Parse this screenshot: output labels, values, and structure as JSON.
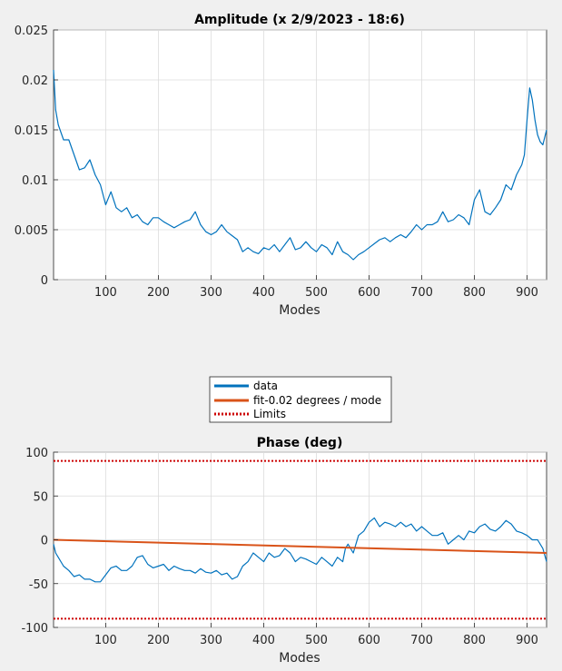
{
  "chart_data": [
    {
      "type": "line",
      "title": "Amplitude (x 2/9/2023 - 18:6)",
      "xlabel": "Modes",
      "ylabel": "",
      "xlim": [
        1,
        937
      ],
      "ylim": [
        0,
        0.025
      ],
      "xticks": [
        100,
        200,
        300,
        400,
        500,
        600,
        700,
        800,
        900
      ],
      "yticks": [
        0,
        0.005,
        0.01,
        0.015,
        0.02,
        0.025
      ],
      "ytick_labels": [
        "0",
        "0.005",
        "0.01",
        "0.015",
        "0.02",
        "0.025"
      ],
      "grid": true,
      "series": [
        {
          "name": "",
          "color": "#0072bd",
          "x": [
            1,
            5,
            10,
            20,
            30,
            40,
            50,
            60,
            70,
            80,
            90,
            100,
            110,
            120,
            130,
            140,
            150,
            160,
            170,
            180,
            190,
            200,
            210,
            220,
            230,
            240,
            250,
            260,
            270,
            280,
            290,
            300,
            310,
            320,
            330,
            340,
            350,
            360,
            370,
            380,
            390,
            400,
            410,
            420,
            430,
            440,
            450,
            460,
            470,
            480,
            490,
            500,
            510,
            520,
            530,
            540,
            550,
            560,
            570,
            580,
            590,
            600,
            610,
            620,
            630,
            640,
            650,
            660,
            670,
            680,
            690,
            700,
            710,
            720,
            730,
            740,
            750,
            760,
            770,
            780,
            790,
            800,
            810,
            820,
            830,
            840,
            850,
            860,
            870,
            880,
            885,
            890,
            895,
            900,
            905,
            910,
            915,
            920,
            925,
            930,
            937
          ],
          "y": [
            0.021,
            0.017,
            0.0155,
            0.014,
            0.014,
            0.0125,
            0.011,
            0.0112,
            0.012,
            0.0105,
            0.0095,
            0.0075,
            0.0088,
            0.0072,
            0.0068,
            0.0072,
            0.0062,
            0.0065,
            0.0058,
            0.0055,
            0.0062,
            0.0062,
            0.0058,
            0.0055,
            0.0052,
            0.0055,
            0.0058,
            0.006,
            0.0068,
            0.0055,
            0.0048,
            0.0045,
            0.0048,
            0.0055,
            0.0048,
            0.0044,
            0.004,
            0.0028,
            0.0032,
            0.0028,
            0.0026,
            0.0032,
            0.003,
            0.0035,
            0.0028,
            0.0035,
            0.0042,
            0.003,
            0.0032,
            0.0038,
            0.0032,
            0.0028,
            0.0035,
            0.0032,
            0.0025,
            0.0038,
            0.0028,
            0.0025,
            0.002,
            0.0025,
            0.0028,
            0.0032,
            0.0036,
            0.004,
            0.0042,
            0.0038,
            0.0042,
            0.0045,
            0.0042,
            0.0048,
            0.0055,
            0.005,
            0.0055,
            0.0055,
            0.0058,
            0.0068,
            0.0058,
            0.006,
            0.0065,
            0.0062,
            0.0055,
            0.008,
            0.009,
            0.0068,
            0.0065,
            0.0072,
            0.008,
            0.0095,
            0.009,
            0.0105,
            0.011,
            0.0115,
            0.0125,
            0.016,
            0.0192,
            0.018,
            0.016,
            0.0145,
            0.0138,
            0.0135,
            0.015
          ]
        }
      ]
    },
    {
      "type": "line",
      "title": "Phase (deg)",
      "xlabel": "Modes",
      "ylabel": "",
      "xlim": [
        1,
        937
      ],
      "ylim": [
        -100,
        100
      ],
      "xticks": [
        100,
        200,
        300,
        400,
        500,
        600,
        700,
        800,
        900
      ],
      "yticks": [
        -100,
        -50,
        0,
        50,
        100
      ],
      "ytick_labels": [
        "-100",
        "-50",
        "0",
        "50",
        "100"
      ],
      "grid": true,
      "legend": {
        "placement": "top-center",
        "entries": [
          {
            "label": "data",
            "color": "#0072bd",
            "style": "solid"
          },
          {
            "label": "fit-0.02 degrees / mode",
            "color": "#d95319",
            "style": "solid"
          },
          {
            "label": "Limits",
            "color": "#cc0000",
            "style": "dotted"
          }
        ]
      },
      "series": [
        {
          "name": "data",
          "color": "#0072bd",
          "x": [
            1,
            5,
            10,
            20,
            30,
            40,
            50,
            60,
            70,
            80,
            90,
            100,
            110,
            120,
            130,
            140,
            150,
            160,
            170,
            180,
            190,
            200,
            210,
            220,
            230,
            240,
            250,
            260,
            270,
            280,
            290,
            300,
            310,
            320,
            330,
            340,
            350,
            360,
            370,
            380,
            390,
            400,
            410,
            420,
            430,
            440,
            450,
            460,
            470,
            480,
            490,
            500,
            510,
            520,
            530,
            540,
            550,
            555,
            560,
            570,
            580,
            590,
            600,
            610,
            620,
            630,
            640,
            650,
            660,
            670,
            680,
            690,
            700,
            710,
            720,
            730,
            740,
            750,
            760,
            770,
            780,
            790,
            800,
            810,
            820,
            830,
            840,
            850,
            860,
            870,
            880,
            890,
            900,
            910,
            920,
            930,
            937
          ],
          "y": [
            -5,
            -15,
            -20,
            -30,
            -35,
            -42,
            -40,
            -45,
            -45,
            -48,
            -48,
            -40,
            -32,
            -30,
            -35,
            -35,
            -30,
            -20,
            -18,
            -28,
            -32,
            -30,
            -28,
            -35,
            -30,
            -33,
            -35,
            -35,
            -38,
            -33,
            -37,
            -38,
            -35,
            -40,
            -38,
            -45,
            -42,
            -30,
            -25,
            -15,
            -20,
            -25,
            -15,
            -20,
            -18,
            -10,
            -15,
            -25,
            -20,
            -22,
            -25,
            -28,
            -20,
            -25,
            -30,
            -20,
            -25,
            -10,
            -5,
            -15,
            5,
            10,
            20,
            25,
            15,
            20,
            18,
            15,
            20,
            15,
            18,
            10,
            15,
            10,
            5,
            5,
            8,
            -5,
            0,
            5,
            0,
            10,
            8,
            15,
            18,
            12,
            10,
            15,
            22,
            18,
            10,
            8,
            5,
            0,
            0,
            -10,
            -25
          ]
        },
        {
          "name": "fit-0.02 degrees / mode",
          "color": "#d95319",
          "x": [
            1,
            937
          ],
          "y": [
            0,
            -15
          ]
        },
        {
          "name": "Limits",
          "color": "#cc0000",
          "x": [
            1,
            937
          ],
          "y": [
            90,
            90
          ]
        },
        {
          "name": "Limits",
          "color": "#cc0000",
          "x": [
            1,
            937
          ],
          "y": [
            -90,
            -90
          ]
        }
      ]
    }
  ]
}
